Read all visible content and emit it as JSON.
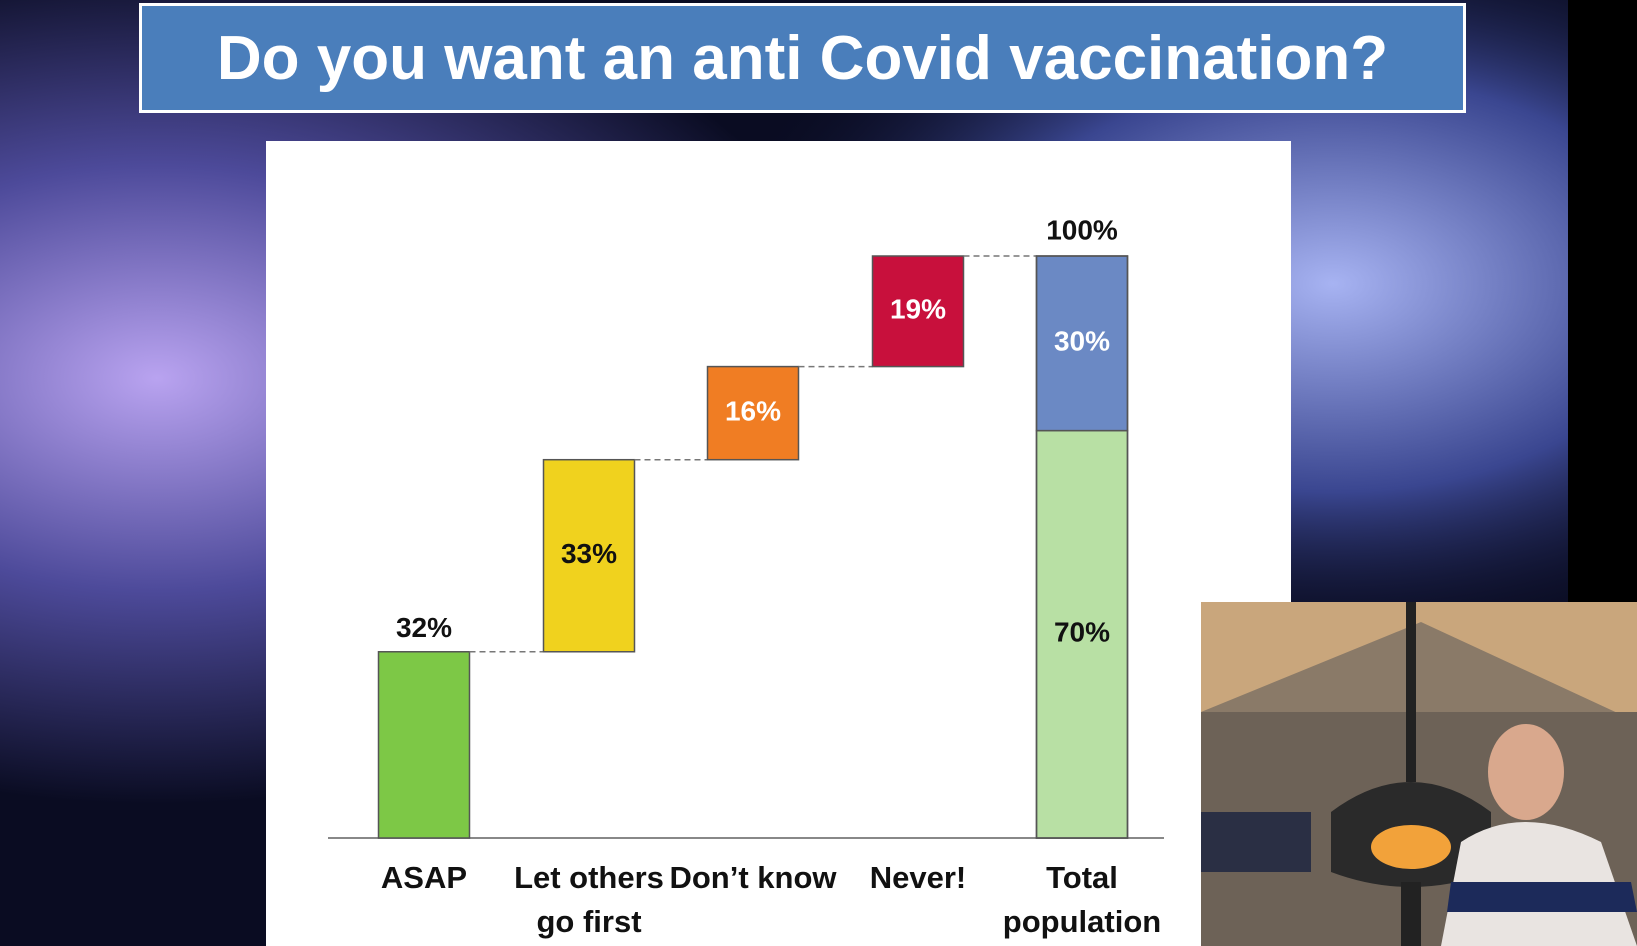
{
  "chart_data": {
    "type": "waterfall",
    "title": "Do you want an anti Covid vaccination?",
    "categories": [
      "ASAP",
      "Let others go first",
      "Don’t know",
      "Never!",
      "Total population"
    ],
    "values": [
      32,
      33,
      16,
      19,
      100
    ],
    "value_labels": [
      "32%",
      "33%",
      "16%",
      "19%",
      "100%"
    ],
    "colors": [
      "#7dc846",
      "#f0d21e",
      "#f07d23",
      "#c8103c"
    ],
    "total_segments": {
      "values": [
        70,
        30
      ],
      "value_labels": [
        "70%",
        "30%"
      ],
      "colors": [
        "#b8e0a4",
        "#6b89c4"
      ]
    },
    "ylim": [
      0,
      100
    ]
  }
}
